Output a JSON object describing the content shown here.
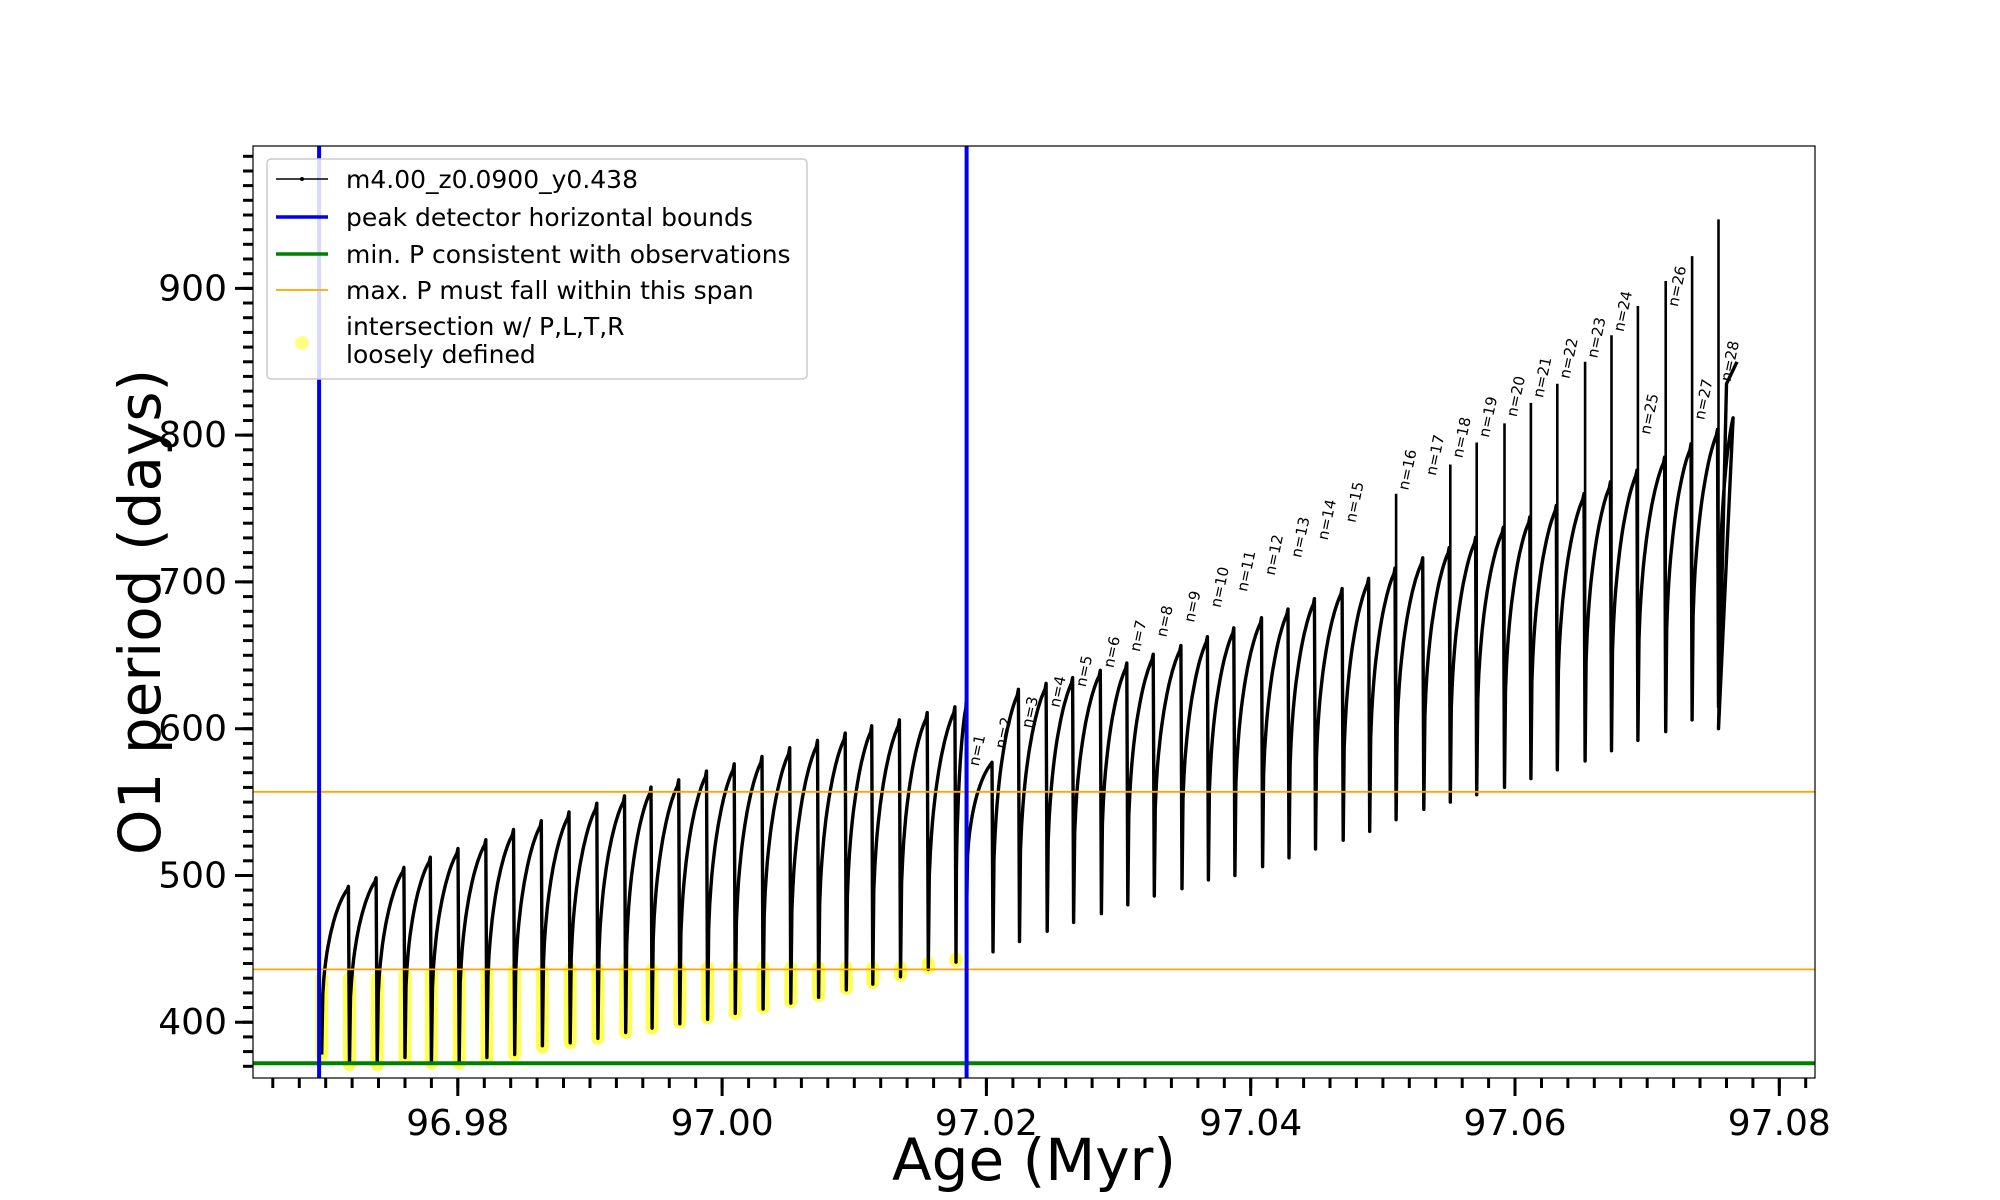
{
  "chart_data": {
    "type": "line",
    "title": "",
    "xlabel": "Age (Myr)",
    "ylabel": "O1 period (days)",
    "xlim": [
      96.9645,
      97.0827
    ],
    "ylim": [
      362,
      997
    ],
    "x_ticks": [
      {
        "value": 96.98,
        "label": "96.98"
      },
      {
        "value": 97.0,
        "label": "97.00"
      },
      {
        "value": 97.02,
        "label": "97.02"
      },
      {
        "value": 97.04,
        "label": "97.04"
      },
      {
        "value": 97.06,
        "label": "97.06"
      },
      {
        "value": 97.08,
        "label": "97.08"
      }
    ],
    "y_ticks": [
      {
        "value": 400,
        "label": "400"
      },
      {
        "value": 500,
        "label": "500"
      },
      {
        "value": 600,
        "label": "600"
      },
      {
        "value": 700,
        "label": "700"
      },
      {
        "value": 800,
        "label": "800"
      },
      {
        "value": 900,
        "label": "900"
      }
    ],
    "legend": {
      "placement": "upper-left",
      "entries": [
        {
          "label": "m4.00_z0.0900_y0.438",
          "style": "line-dot",
          "color": "#000000"
        },
        {
          "label": "peak detector horizontal bounds",
          "style": "line",
          "color": "#0000ee"
        },
        {
          "label": "min. P consistent with observations",
          "style": "line",
          "color": "#008000"
        },
        {
          "label": "max. P must fall within this span",
          "style": "line-thin",
          "color": "#ffa500"
        },
        {
          "label": "intersection w/ P,L,T,R",
          "label_line2": "loosely defined",
          "style": "marker",
          "color": "#ffff33"
        }
      ]
    },
    "vertical_lines": [
      {
        "x": 96.9695,
        "color": "#0000ee",
        "name": "peak detector horizontal bounds"
      },
      {
        "x": 97.0185,
        "color": "#0000ee",
        "name": "peak detector horizontal bounds"
      }
    ],
    "horizontal_lines": [
      {
        "y": 372,
        "color": "#008000",
        "name": "min. P consistent with observations"
      },
      {
        "y": 557,
        "color": "#ffa500",
        "name": "max. P must fall within this span"
      },
      {
        "y": 436,
        "color": "#ffa500",
        "name": "max. P must fall within this span"
      }
    ],
    "series": [
      {
        "name": "m4.00_z0.0900_y0.438",
        "color": "#000000",
        "note": "pulses: each cycle rises from min to peak then drops",
        "pulses": [
          {
            "x": 96.9697,
            "min": 378,
            "peak": 495
          },
          {
            "x": 96.9718,
            "min": 372,
            "peak": 501
          },
          {
            "x": 96.9739,
            "min": 372,
            "peak": 508
          },
          {
            "x": 96.976,
            "min": 376,
            "peak": 515
          },
          {
            "x": 96.978,
            "min": 372,
            "peak": 521
          },
          {
            "x": 96.9801,
            "min": 373,
            "peak": 527
          },
          {
            "x": 96.9822,
            "min": 376,
            "peak": 534
          },
          {
            "x": 96.9843,
            "min": 378,
            "peak": 540
          },
          {
            "x": 96.9864,
            "min": 384,
            "peak": 546
          },
          {
            "x": 96.9885,
            "min": 386,
            "peak": 552
          },
          {
            "x": 96.9906,
            "min": 389,
            "peak": 557
          },
          {
            "x": 96.9927,
            "min": 393,
            "peak": 563
          },
          {
            "x": 96.9947,
            "min": 396,
            "peak": 568
          },
          {
            "x": 96.9968,
            "min": 399,
            "peak": 574
          },
          {
            "x": 96.9989,
            "min": 402,
            "peak": 579
          },
          {
            "x": 97.001,
            "min": 406,
            "peak": 584
          },
          {
            "x": 97.0031,
            "min": 409,
            "peak": 590
          },
          {
            "x": 97.0052,
            "min": 413,
            "peak": 595
          },
          {
            "x": 97.0073,
            "min": 417,
            "peak": 600
          },
          {
            "x": 97.0094,
            "min": 422,
            "peak": 605
          },
          {
            "x": 97.0114,
            "min": 426,
            "peak": 609
          },
          {
            "x": 97.0135,
            "min": 431,
            "peak": 614
          },
          {
            "x": 97.0156,
            "min": 436,
            "peak": 618
          },
          {
            "x": 97.0177,
            "min": 441,
            "peak": 621
          },
          {
            "x": 97.0185,
            "min": 478,
            "peak": 580,
            "label": "n=1",
            "label_y": 574
          },
          {
            "x": 97.0205,
            "min": 448,
            "peak": 630,
            "label": "n=2",
            "label_y": 586
          },
          {
            "x": 97.0225,
            "min": 455,
            "peak": 634,
            "label": "n=3",
            "label_y": 600
          },
          {
            "x": 97.0246,
            "min": 462,
            "peak": 638,
            "label": "n=4",
            "label_y": 614
          },
          {
            "x": 97.0266,
            "min": 468,
            "peak": 643,
            "label": "n=5",
            "label_y": 628
          },
          {
            "x": 97.0287,
            "min": 474,
            "peak": 648,
            "label": "n=6",
            "label_y": 641
          },
          {
            "x": 97.0307,
            "min": 480,
            "peak": 654,
            "label": "n=7",
            "label_y": 652
          },
          {
            "x": 97.0327,
            "min": 486,
            "peak": 660,
            "label": "n=8",
            "label_y": 662
          },
          {
            "x": 97.0348,
            "min": 491,
            "peak": 666,
            "label": "n=9",
            "label_y": 672
          },
          {
            "x": 97.0368,
            "min": 497,
            "peak": 672,
            "label": "n=10",
            "label_y": 682
          },
          {
            "x": 97.0388,
            "min": 500,
            "peak": 679,
            "label": "n=11",
            "label_y": 693
          },
          {
            "x": 97.0409,
            "min": 506,
            "peak": 685,
            "label": "n=12",
            "label_y": 704
          },
          {
            "x": 97.0429,
            "min": 512,
            "peak": 692,
            "label": "n=13",
            "label_y": 716
          },
          {
            "x": 97.0449,
            "min": 518,
            "peak": 699,
            "label": "n=14",
            "label_y": 728
          },
          {
            "x": 97.047,
            "min": 524,
            "peak": 706,
            "label": "n=15",
            "label_y": 740
          },
          {
            "x": 97.049,
            "min": 530,
            "peak": 713
          },
          {
            "x": 97.051,
            "min": 538,
            "peak": 720,
            "label": "n=16",
            "label_y": 762
          },
          {
            "x": 97.0531,
            "min": 545,
            "peak": 727,
            "label": "n=17",
            "label_y": 772
          },
          {
            "x": 97.0551,
            "min": 550,
            "peak": 734,
            "label": "n=18",
            "label_y": 784
          },
          {
            "x": 97.0571,
            "min": 555,
            "peak": 741,
            "label": "n=19",
            "label_y": 798
          },
          {
            "x": 97.0592,
            "min": 560,
            "peak": 748,
            "label": "n=20",
            "label_y": 812
          },
          {
            "x": 97.0612,
            "min": 566,
            "peak": 756,
            "label": "n=21",
            "label_y": 825
          },
          {
            "x": 97.0632,
            "min": 572,
            "peak": 764,
            "label": "n=22",
            "label_y": 838
          },
          {
            "x": 97.0653,
            "min": 578,
            "peak": 772,
            "label": "n=23",
            "label_y": 852
          },
          {
            "x": 97.0673,
            "min": 585,
            "peak": 780,
            "label": "n=24",
            "label_y": 870
          },
          {
            "x": 97.0693,
            "min": 592,
            "peak": 789,
            "label": "n=25",
            "label_y": 800
          },
          {
            "x": 97.0714,
            "min": 598,
            "peak": 798,
            "label": "n=26",
            "label_y": 887
          },
          {
            "x": 97.0734,
            "min": 606,
            "peak": 808,
            "label": "n=27",
            "label_y": 810
          },
          {
            "x": 97.0754,
            "min": 615,
            "peak": 820,
            "label": "n=28",
            "label_y": 836
          }
        ],
        "spikes": [
          {
            "x": 97.0185,
            "top": 620
          },
          {
            "x": 97.051,
            "top": 760
          },
          {
            "x": 97.0551,
            "top": 780
          },
          {
            "x": 97.0571,
            "top": 795
          },
          {
            "x": 97.0592,
            "top": 808
          },
          {
            "x": 97.0612,
            "top": 822
          },
          {
            "x": 97.0632,
            "top": 835
          },
          {
            "x": 97.0653,
            "top": 850
          },
          {
            "x": 97.0673,
            "top": 868
          },
          {
            "x": 97.0693,
            "top": 888
          },
          {
            "x": 97.0714,
            "top": 905
          },
          {
            "x": 97.0734,
            "top": 922
          },
          {
            "x": 97.0754,
            "top": 947
          }
        ],
        "tail": [
          {
            "x": 97.0754,
            "y": 600
          },
          {
            "x": 97.076,
            "y": 835
          },
          {
            "x": 97.0768,
            "y": 850
          }
        ]
      },
      {
        "name": "intersection w/ P,L,T,R loosely defined",
        "type": "scatter",
        "color": "#ffff33",
        "points": [
          {
            "x": 96.9697,
            "ymin": 378,
            "ymax": 430
          },
          {
            "x": 96.9718,
            "ymin": 371,
            "ymax": 430
          },
          {
            "x": 96.9739,
            "ymin": 371,
            "ymax": 430
          },
          {
            "x": 96.976,
            "ymin": 375,
            "ymax": 432
          },
          {
            "x": 96.978,
            "ymin": 372,
            "ymax": 433
          },
          {
            "x": 96.9801,
            "ymin": 372,
            "ymax": 434
          },
          {
            "x": 96.9822,
            "ymin": 375,
            "ymax": 434
          },
          {
            "x": 96.9843,
            "ymin": 378,
            "ymax": 435
          },
          {
            "x": 96.9864,
            "ymin": 383,
            "ymax": 435
          },
          {
            "x": 96.9885,
            "ymin": 386,
            "ymax": 436
          },
          {
            "x": 96.9906,
            "ymin": 389,
            "ymax": 436
          },
          {
            "x": 96.9927,
            "ymin": 393,
            "ymax": 436
          },
          {
            "x": 96.9947,
            "ymin": 396,
            "ymax": 436
          },
          {
            "x": 96.9968,
            "ymin": 400,
            "ymax": 436
          },
          {
            "x": 96.9989,
            "ymin": 403,
            "ymax": 437
          },
          {
            "x": 97.001,
            "ymin": 406,
            "ymax": 437
          },
          {
            "x": 97.0031,
            "ymin": 410,
            "ymax": 437
          },
          {
            "x": 97.0052,
            "ymin": 414,
            "ymax": 437
          },
          {
            "x": 97.0073,
            "ymin": 418,
            "ymax": 437
          },
          {
            "x": 97.0094,
            "ymin": 423,
            "ymax": 437
          },
          {
            "x": 97.0114,
            "ymin": 427,
            "ymax": 437
          },
          {
            "x": 97.0135,
            "ymin": 432,
            "ymax": 437
          },
          {
            "x": 97.0156,
            "ymin": 437,
            "ymax": 440
          },
          {
            "x": 97.0177,
            "ymin": 442,
            "ymax": 443
          }
        ]
      }
    ]
  }
}
